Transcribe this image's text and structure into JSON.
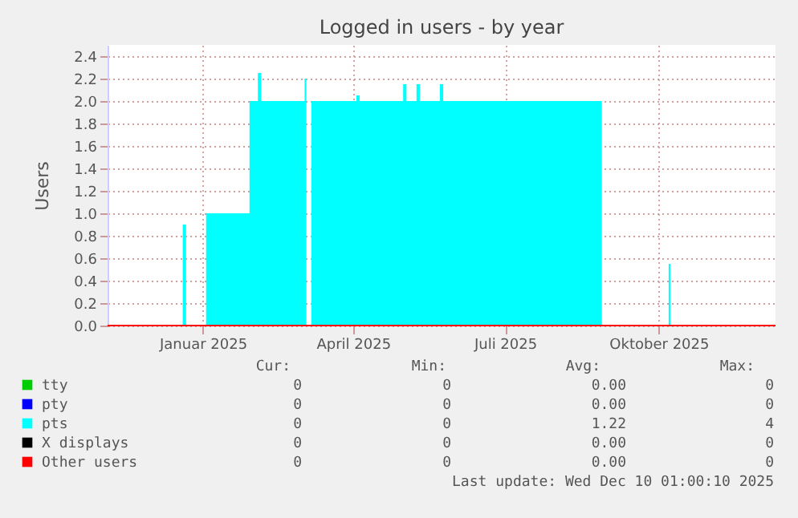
{
  "chart_data": {
    "type": "area",
    "title": "Logged in users - by year",
    "ylabel": "Users",
    "xlim": [
      "2024-11-05",
      "2025-12-10"
    ],
    "xticks": [
      {
        "value": "2025-01-01",
        "label": "Januar 2025"
      },
      {
        "value": "2025-04-01",
        "label": "April 2025"
      },
      {
        "value": "2025-07-01",
        "label": "Juli 2025"
      },
      {
        "value": "2025-10-01",
        "label": "Oktober 2025"
      }
    ],
    "ylim": [
      0,
      2.5
    ],
    "yticks": [
      {
        "value": 0,
        "label": "0.0"
      },
      {
        "value": 0.2,
        "label": "0.2"
      },
      {
        "value": 0.4,
        "label": "0.4"
      },
      {
        "value": 0.6,
        "label": "0.6"
      },
      {
        "value": 0.8,
        "label": "0.8"
      },
      {
        "value": 1,
        "label": "1.0"
      },
      {
        "value": 1.2,
        "label": "1.2"
      },
      {
        "value": 1.4,
        "label": "1.4"
      },
      {
        "value": 1.6,
        "label": "1.6"
      },
      {
        "value": 1.8,
        "label": "1.8"
      },
      {
        "value": 2,
        "label": "2.0"
      },
      {
        "value": 2.2,
        "label": "2.2"
      },
      {
        "value": 2.4,
        "label": "2.4"
      }
    ],
    "grid": true,
    "legend": "bottom",
    "series": [
      {
        "name": "tty",
        "color": "#00cc00"
      },
      {
        "name": "pty",
        "color": "#0000ff"
      },
      {
        "name": "pts",
        "color": "#00ffff",
        "x": [
          "2024-11-05",
          "2024-12-20",
          "2024-12-22",
          "2025-01-03",
          "2025-01-29",
          "2025-02-03",
          "2025-02-05",
          "2025-03-03",
          "2025-03-04",
          "2025-03-07",
          "2025-04-03",
          "2025-04-05",
          "2025-05-01",
          "2025-05-03",
          "2025-05-09",
          "2025-05-11",
          "2025-05-23",
          "2025-05-25",
          "2025-08-28",
          "2025-10-07",
          "2025-10-08",
          "2025-12-10"
        ],
        "values": [
          0,
          0.9,
          0,
          1,
          2,
          2.25,
          2,
          2.2,
          0,
          2,
          2.05,
          2,
          2.15,
          2,
          2.15,
          2,
          2.15,
          2,
          0,
          0.55,
          0,
          0
        ]
      },
      {
        "name": "X displays",
        "color": "#000000"
      },
      {
        "name": "Other users",
        "color": "#ff0000",
        "type": "line",
        "x": [
          "2024-11-05",
          "2025-12-10"
        ],
        "values": [
          0,
          0
        ]
      }
    ],
    "annotations": [
      "Cur:",
      "Min:",
      "Avg:",
      "Max:",
      "0",
      "0",
      "0.00",
      "0",
      "0",
      "0",
      "0.00",
      "0",
      "0",
      "0",
      "1.22",
      "4",
      "0",
      "0",
      "0.00",
      "0",
      "0",
      "0",
      "0.00",
      "0",
      "Last update: Wed Dec 10 01:00:10 2025"
    ]
  }
}
